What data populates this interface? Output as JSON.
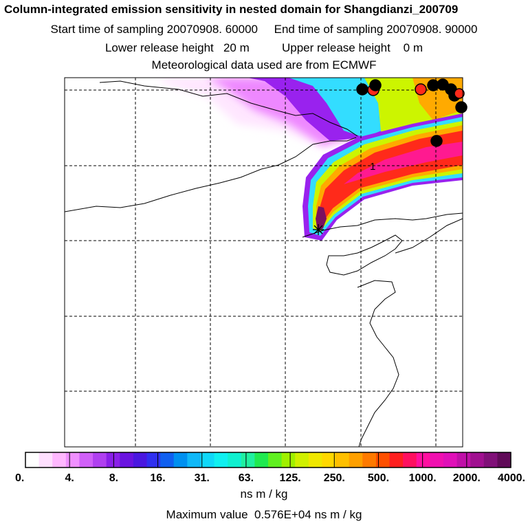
{
  "header": {
    "title": "Column-integrated emission sensitivity in nested domain for Shangdianzi_200709",
    "line2": "Start time of sampling 20070908. 60000     End time of sampling 20070908. 90000",
    "line3": "Lower release height   20 m          Upper release height    0 m",
    "line4": "Meteorological data used are from ECMWF"
  },
  "map": {
    "station_marker": "1",
    "plume_colors": [
      "#ffe6ff",
      "#ee88ff",
      "#9922ee",
      "#33ddff",
      "#ccf500",
      "#ffaa00",
      "#ff2a1a",
      "#ff1a90",
      "#7a1060"
    ]
  },
  "legend": {
    "tick_labels": [
      "0.",
      "4.",
      "8.",
      "16.",
      "31.",
      "63.",
      "125.",
      "250.",
      "500.",
      "1000.",
      "2000.",
      "4000."
    ],
    "colors": [
      "#ffffff",
      "#ffe0ff",
      "#ffb8ff",
      "#f090ff",
      "#d060f8",
      "#b040f0",
      "#8a20e8",
      "#6a14e0",
      "#4a18e0",
      "#3030f0",
      "#1060f0",
      "#0090f0",
      "#10b8f8",
      "#10d8f8",
      "#10f0f0",
      "#10f0d0",
      "#20f0a0",
      "#20ea50",
      "#60f020",
      "#a0f000",
      "#d0f000",
      "#f0e800",
      "#ffd800",
      "#ffc000",
      "#ffa000",
      "#ff7a00",
      "#ff5000",
      "#ff2020",
      "#ff1060",
      "#ff10a0",
      "#f010b0",
      "#e010b8",
      "#c010a8",
      "#a01090",
      "#801078",
      "#600a58"
    ],
    "units": "ns m / kg",
    "max_value": "Maximum value  0.576E+04 ns m / kg"
  }
}
